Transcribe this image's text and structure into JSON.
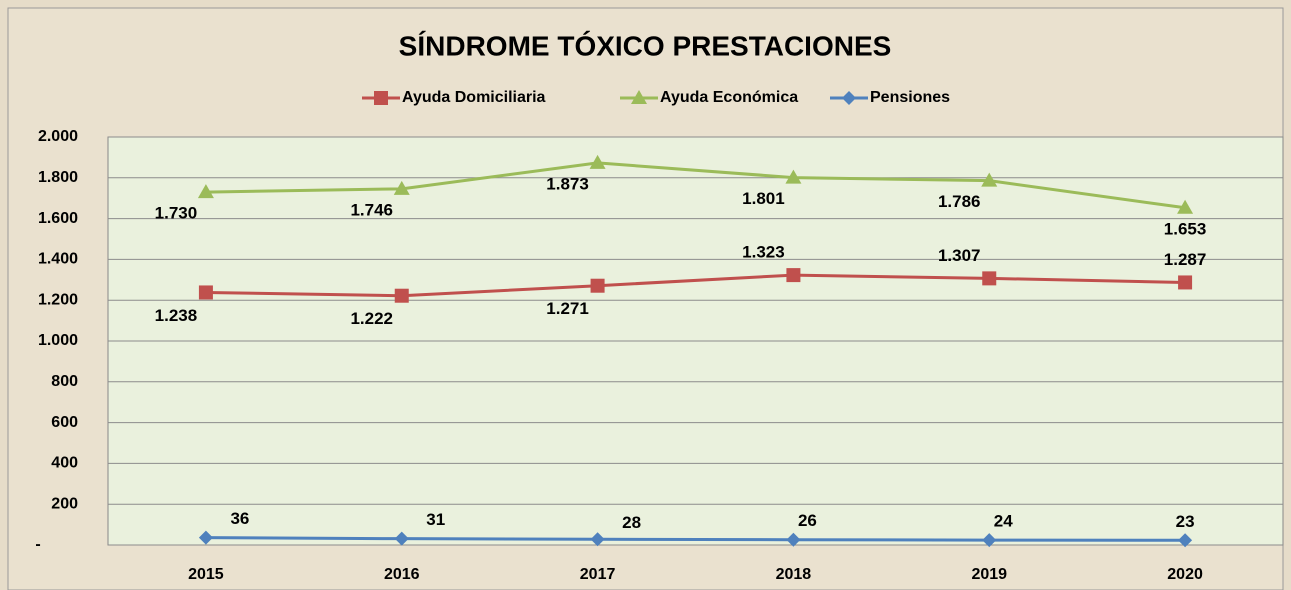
{
  "chart_data": {
    "type": "line",
    "title": "SÍNDROME TÓXICO PRESTACIONES",
    "categories": [
      "2015",
      "2016",
      "2017",
      "2018",
      "2019",
      "2020"
    ],
    "series": [
      {
        "name": "Ayuda Domiciliaria",
        "color": "#c0504d",
        "marker": "square",
        "values": [
          1238,
          1222,
          1271,
          1323,
          1307,
          1287
        ],
        "value_labels": [
          "1.238",
          "1.222",
          "1.271",
          "1.323",
          "1.307",
          "1.287"
        ]
      },
      {
        "name": "Ayuda Económica",
        "color": "#9bbb59",
        "marker": "triangle",
        "values": [
          1730,
          1746,
          1873,
          1801,
          1786,
          1653
        ],
        "value_labels": [
          "1.730",
          "1.746",
          "1.873",
          "1.801",
          "1.786",
          "1.653"
        ]
      },
      {
        "name": "Pensiones",
        "color": "#4f81bd",
        "marker": "diamond",
        "values": [
          36,
          31,
          28,
          26,
          24,
          23
        ]
      }
    ],
    "ylim": [
      0,
      2000
    ],
    "yticks": [
      {
        "value": 0,
        "label": "-"
      },
      200,
      400,
      600,
      800,
      {
        "value": 1000,
        "label": "1.000"
      },
      {
        "value": 1200,
        "label": "1.200"
      },
      {
        "value": 1400,
        "label": "1.400"
      },
      {
        "value": 1600,
        "label": "1.600"
      },
      {
        "value": 1800,
        "label": "1.800"
      },
      {
        "value": 2000,
        "label": "2.000"
      }
    ],
    "grid": true,
    "legend": "top"
  }
}
